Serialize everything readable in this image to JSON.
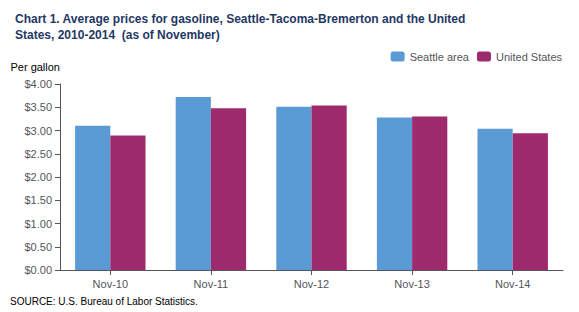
{
  "chart_data": {
    "type": "bar",
    "title": "Chart 1. Average prices for gasoline, Seattle-Tacoma-Bremerton and the United\nStates, 2010-2014  (as of November)",
    "ylabel": "Per gallon",
    "annotations": [
      "SOURCE: U.S. Bureau of Labor Statistics."
    ],
    "categories": [
      "Nov-10",
      "Nov-11",
      "Nov-12",
      "Nov-13",
      "Nov-14"
    ],
    "series": [
      {
        "name": "Seattle area",
        "color": "#5B9BD5",
        "values": [
          3.1,
          3.72,
          3.51,
          3.28,
          3.04
        ]
      },
      {
        "name": "United States",
        "color": "#9E2A6E",
        "values": [
          2.89,
          3.48,
          3.54,
          3.3,
          2.94
        ]
      }
    ],
    "ylim": [
      0.0,
      4.0
    ],
    "yticks": [
      {
        "value": 0.0,
        "label": "$0.00"
      },
      {
        "value": 0.5,
        "label": "$0.50"
      },
      {
        "value": 1.0,
        "label": "$1.00"
      },
      {
        "value": 1.5,
        "label": "$1.50"
      },
      {
        "value": 2.0,
        "label": "$2.00"
      },
      {
        "value": 2.5,
        "label": "$2.50"
      },
      {
        "value": 3.0,
        "label": "$3.00"
      },
      {
        "value": 3.5,
        "label": "$3.50"
      },
      {
        "value": 4.0,
        "label": "$4.00"
      }
    ],
    "grid": false,
    "legend": "upper right",
    "title_color": "#1F3864"
  }
}
